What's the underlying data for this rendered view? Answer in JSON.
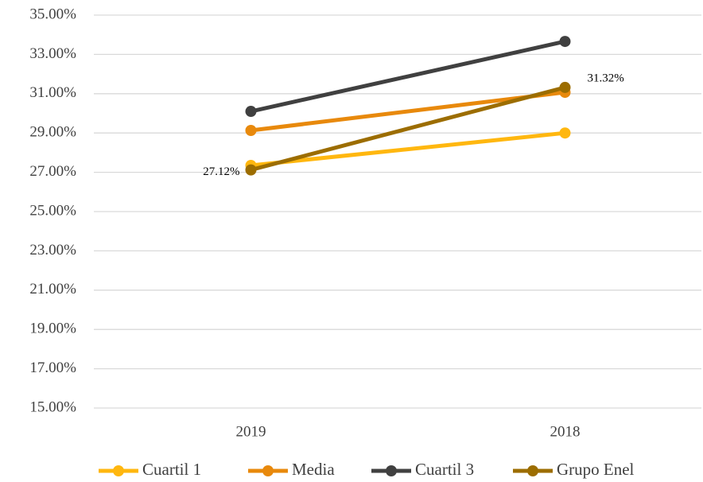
{
  "chart_data": {
    "type": "line",
    "categories": [
      "2019",
      "2018"
    ],
    "series": [
      {
        "name": "Cuartil 1",
        "color": "#ffb70f",
        "values": [
          27.35,
          29.0
        ]
      },
      {
        "name": "Media",
        "color": "#e8890c",
        "values": [
          29.13,
          31.07
        ]
      },
      {
        "name": "Cuartil 3",
        "color": "#404040",
        "values": [
          30.1,
          33.66
        ]
      },
      {
        "name": "Grupo Enel",
        "color": "#9c6d00",
        "values": [
          27.12,
          31.32
        ],
        "value_labels": [
          "27.12%",
          "31.32%"
        ]
      }
    ],
    "ylim": [
      15,
      35
    ],
    "yticks": [
      {
        "value": 15,
        "label": "15.00%"
      },
      {
        "value": 17,
        "label": "17.00%"
      },
      {
        "value": 19,
        "label": "19.00%"
      },
      {
        "value": 21,
        "label": "21.00%"
      },
      {
        "value": 23,
        "label": "23.00%"
      },
      {
        "value": 25,
        "label": "25.00%"
      },
      {
        "value": 27,
        "label": "27.00%"
      },
      {
        "value": 29,
        "label": "29.00%"
      },
      {
        "value": 31,
        "label": "31.00%"
      },
      {
        "value": 33,
        "label": "33.00%"
      },
      {
        "value": 35,
        "label": "35.00%"
      }
    ],
    "grid": true,
    "legend": "bottom"
  }
}
